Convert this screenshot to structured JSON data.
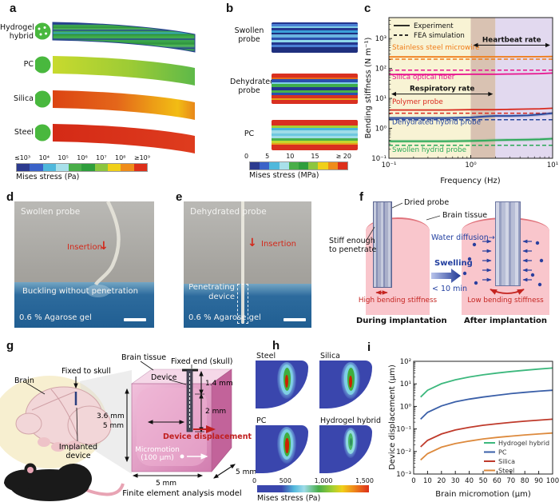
{
  "letters": {
    "a": "a",
    "b": "b",
    "c": "c",
    "d": "d",
    "e": "e",
    "f": "f",
    "g": "g",
    "h": "h",
    "i": "i"
  },
  "icons": {
    "down_arrow": "↓",
    "right_arrow": "→"
  },
  "panel_a": {
    "rows": [
      {
        "l1": "Hydrogel",
        "l2": "hybrid"
      },
      {
        "l1": "PC",
        "l2": ""
      },
      {
        "l1": "Silica",
        "l2": ""
      },
      {
        "l1": "Steel",
        "l2": ""
      }
    ],
    "colorbar": {
      "ticks": [
        "≤10³",
        "10⁴",
        "10⁵",
        "10⁶",
        "10⁷",
        "10⁸",
        "≥10⁹"
      ],
      "caption": "Mises stress (Pa)"
    }
  },
  "panel_b": {
    "rows": [
      {
        "l1": "Swollen",
        "l2": "probe"
      },
      {
        "l1": "Dehydrated",
        "l2": "probe"
      },
      {
        "l1": "PC",
        "l2": ""
      }
    ],
    "colorbar": {
      "ticks": [
        "0",
        "5",
        "10",
        "15",
        "≥ 20"
      ],
      "caption": "Mises stress (MPa)"
    }
  },
  "panel_d": {
    "title": "Swollen probe",
    "insertion_label": "Insertion",
    "caption": "Buckling without penetration",
    "medium": "0.6 % Agarose gel"
  },
  "panel_e": {
    "title": "Dehydrated probe",
    "insertion_label": "Insertion",
    "device_label1": "Penetrating",
    "device_label2": "device",
    "medium": "0.6 % Agarose gel"
  },
  "panel_f": {
    "dried_probe": "Dried probe",
    "brain_tissue": "Brain tissue",
    "stiff1": "Stiff enough",
    "stiff2": "to penetrate",
    "high_stiffness": "High bending stiffness",
    "during": "During implantation",
    "water_diffusion": "Water diffusion",
    "swelling": "Swelling",
    "time": "< 10 min",
    "low_stiffness": "Low bending stiffness",
    "after": "After implantation"
  },
  "panel_g": {
    "brain": "Brain",
    "fixed_to_skull": "Fixed to skull",
    "implanted1": "Implanted",
    "implanted2": "device",
    "brain_tissue": "Brain tissue",
    "device": "Device",
    "fixed_end": "Fixed end (skull)",
    "dim_14": "1.4 mm",
    "dim_2": "2 mm",
    "dim_36": "3.6 mm",
    "dim_5_left": "5 mm",
    "dim_5_bottom": "5 mm",
    "dim_5_right": "5 mm",
    "displacement": "Device displacement",
    "micromotion1": "Micromotion",
    "micromotion2": "(100 μm)",
    "caption": "Finite element analysis model"
  },
  "panel_h": {
    "panels": [
      "Steel",
      "Silica",
      "PC",
      "Hydrogel hybrid"
    ],
    "colorbar": {
      "ticks": [
        "0",
        "500",
        "1,000",
        "1,500"
      ],
      "caption": "Mises stress (Pa)"
    }
  },
  "chart_data": [
    {
      "id": "c",
      "type": "line",
      "x_scale": "log",
      "y_scale": "log",
      "xlabel": "Frequency (Hz)",
      "ylabel": "Bending stiffness (N m⁻¹)",
      "xlim": [
        0.1,
        10
      ],
      "ylim": [
        0.1,
        5000
      ],
      "xticks": [
        [
          0.1,
          "10⁻¹"
        ],
        [
          1,
          "10⁰"
        ],
        [
          10,
          "10¹"
        ]
      ],
      "yticks": [
        [
          1000,
          "10³"
        ],
        [
          100,
          "10²"
        ],
        [
          10,
          "10¹"
        ],
        [
          1,
          "10⁰"
        ],
        [
          0.1,
          "10⁻¹"
        ]
      ],
      "legend": [
        {
          "label": "Experiment",
          "style": "solid"
        },
        {
          "label": "FEA simulation",
          "style": "dashed"
        }
      ],
      "regions": [
        {
          "x0": 0.1,
          "x1": 1,
          "color": "#f8f3d4"
        },
        {
          "x0": 1,
          "x1": 2,
          "color": "#d9c2b2"
        },
        {
          "x0": 2,
          "x1": 10,
          "color": "#e2d9ef"
        }
      ],
      "annotations": [
        {
          "text": "Heartbeat rate",
          "x0": 1,
          "x1": 10,
          "y": 600
        },
        {
          "text": "Respiratory rate",
          "x0": 0.1,
          "x1": 2,
          "y": 14
        }
      ],
      "x": [
        0.1,
        0.2,
        0.5,
        1,
        1.5,
        2,
        3,
        5,
        7,
        10
      ],
      "series": [
        {
          "name": "Stainless steel microwire",
          "color": "#f07b16",
          "label_y": 430,
          "experiment": [
            245,
            245,
            245,
            245,
            246,
            246,
            246,
            247,
            248,
            250
          ],
          "fea": [
            205,
            205,
            205,
            205,
            205,
            205,
            205,
            205,
            205,
            205
          ]
        },
        {
          "name": "Silica optical fiber",
          "color": "#e8138f",
          "label_y": 44,
          "experiment": [
            63,
            63,
            63,
            64,
            64,
            64,
            65,
            66,
            67,
            70
          ],
          "fea": [
            88,
            88,
            88,
            88,
            88,
            88,
            88,
            88,
            88,
            88
          ]
        },
        {
          "name": "Polymer probe",
          "color": "#d92b1f",
          "label_y": 6.5,
          "experiment": [
            4.1,
            4.1,
            4.1,
            4.2,
            4.2,
            4.2,
            4.3,
            4.4,
            4.5,
            4.7
          ],
          "fea": [
            3.2,
            3.2,
            3.2,
            3.2,
            3.2,
            3.2,
            3.2,
            3.2,
            3.2,
            3.2
          ]
        },
        {
          "name": "Dehydrated hybrid probe",
          "color": "#27479c",
          "label_y": 1.35,
          "band": true,
          "experiment": [
            2.2,
            2.2,
            2.2,
            2.3,
            2.5,
            2.6,
            2.6,
            2.7,
            2.9,
            3.2
          ],
          "fea": [
            1.95,
            1.95,
            1.95,
            1.95,
            1.95,
            1.95,
            1.95,
            1.95,
            1.95,
            1.95
          ]
        },
        {
          "name": "Swollen hydrid probe",
          "color": "#2aa857",
          "label_y": 0.165,
          "band": true,
          "experiment": [
            0.37,
            0.37,
            0.37,
            0.38,
            0.39,
            0.4,
            0.41,
            0.42,
            0.43,
            0.45
          ],
          "fea": [
            0.27,
            0.27,
            0.27,
            0.27,
            0.27,
            0.27,
            0.27,
            0.27,
            0.27,
            0.27
          ]
        }
      ]
    },
    {
      "id": "i",
      "type": "line",
      "x_scale": "linear",
      "y_scale": "log",
      "xlabel": "Brain micromotion (μm)",
      "ylabel": "Device displacement (μm)",
      "xlim": [
        0,
        100
      ],
      "ylim": [
        0.001,
        100
      ],
      "xticks": [
        [
          0,
          "0"
        ],
        [
          10,
          "10"
        ],
        [
          20,
          "20"
        ],
        [
          30,
          "30"
        ],
        [
          40,
          "40"
        ],
        [
          50,
          "50"
        ],
        [
          60,
          "60"
        ],
        [
          70,
          "70"
        ],
        [
          80,
          "80"
        ],
        [
          90,
          "90"
        ],
        [
          100,
          "100"
        ]
      ],
      "yticks": [
        [
          100,
          "10²"
        ],
        [
          10,
          "10¹"
        ],
        [
          1,
          "10⁰"
        ],
        [
          0.1,
          "10⁻¹"
        ],
        [
          0.01,
          "10⁻²"
        ],
        [
          0.001,
          "10⁻³"
        ]
      ],
      "x": [
        5,
        10,
        20,
        30,
        40,
        50,
        60,
        70,
        80,
        90,
        100
      ],
      "series": [
        {
          "name": "Hydrogel hybrid",
          "color": "#3cb87d",
          "values": [
            2.6,
            5.2,
            10.2,
            15.2,
            20.2,
            25.2,
            30.2,
            35.2,
            40.2,
            45.2,
            50.2
          ]
        },
        {
          "name": "PC",
          "color": "#3a5fa8",
          "values": [
            0.27,
            0.54,
            1.05,
            1.6,
            2.1,
            2.6,
            3.1,
            3.7,
            4.2,
            4.7,
            5.2
          ]
        },
        {
          "name": "Silica",
          "color": "#bf3a2b",
          "values": [
            0.016,
            0.031,
            0.06,
            0.09,
            0.118,
            0.145,
            0.17,
            0.195,
            0.22,
            0.245,
            0.27
          ]
        },
        {
          "name": "Steel",
          "color": "#dd8a3d",
          "values": [
            0.0042,
            0.008,
            0.0155,
            0.0225,
            0.029,
            0.036,
            0.042,
            0.048,
            0.054,
            0.06,
            0.066
          ]
        }
      ]
    }
  ]
}
